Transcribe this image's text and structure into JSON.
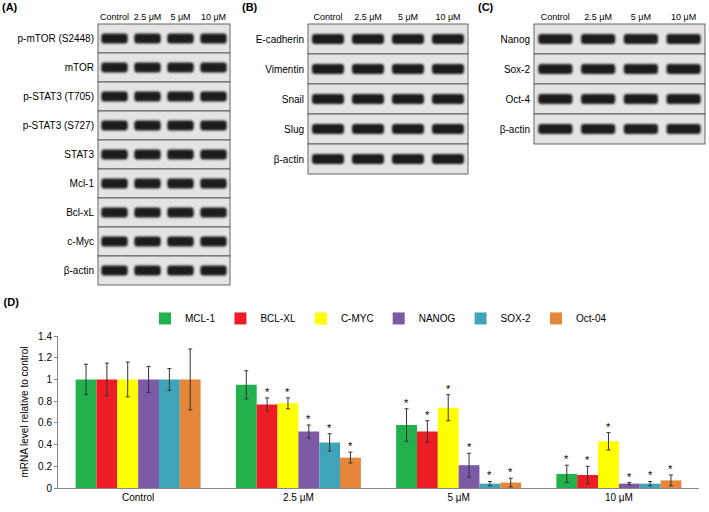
{
  "blots": [
    {
      "label": "(A)",
      "lanes": [
        "Control",
        "2.5 μM",
        "5 μM",
        "10 μM"
      ],
      "rows": [
        "p-mTOR (S2448)",
        "mTOR",
        "p-STAT3 (T705)",
        "p-STAT3 (S727)",
        "STAT3",
        "Mcl-1",
        "Bcl-xL",
        "c-Myc",
        "β-actin"
      ]
    },
    {
      "label": "(B)",
      "lanes": [
        "Control",
        "2.5 μM",
        "5 μM",
        "10 μM"
      ],
      "rows": [
        "E-cadherin",
        "Vimentin",
        "Snail",
        "Slug",
        "β-actin"
      ]
    },
    {
      "label": "(C)",
      "lanes": [
        "Control",
        "2.5 μM",
        "5 μM",
        "10 μM"
      ],
      "rows": [
        "Nanog",
        "Sox-2",
        "Oct-4",
        "β-actin"
      ]
    }
  ],
  "chart_data": {
    "type": "bar",
    "title": "(D)",
    "y_label": "mRNA level relative to control",
    "categories": [
      "Control",
      "2.5 μM",
      "5 μM",
      "10 μM"
    ],
    "ylim": [
      0,
      1.4
    ],
    "yticks": [
      0,
      0.2,
      0.4,
      0.6,
      0.8,
      1,
      1.2,
      1.4
    ],
    "grid": false,
    "legend": "top",
    "series": [
      {
        "name": "MCL-1",
        "color": "#22b14c",
        "values": [
          1,
          0.95,
          0.58,
          0.13
        ],
        "errors": [
          0.14,
          0.13,
          0.15,
          0.08
        ],
        "significance": [
          null,
          null,
          "*",
          "*"
        ]
      },
      {
        "name": "BCL-XL",
        "color": "#ee1c24",
        "values": [
          1,
          0.77,
          0.52,
          0.12
        ],
        "errors": [
          0.15,
          0.06,
          0.1,
          0.08
        ],
        "significance": [
          null,
          "*",
          "*",
          "*"
        ]
      },
      {
        "name": "C-MYC",
        "color": "#ffff00",
        "values": [
          1,
          0.78,
          0.74,
          0.43
        ],
        "errors": [
          0.16,
          0.05,
          0.12,
          0.08
        ],
        "significance": [
          null,
          "*",
          "*",
          "*"
        ]
      },
      {
        "name": "NANOG",
        "color": "#7d5aa6",
        "values": [
          1,
          0.52,
          0.21,
          0.04
        ],
        "errors": [
          0.12,
          0.06,
          0.11,
          0.01
        ],
        "significance": [
          null,
          "*",
          "*",
          "*"
        ]
      },
      {
        "name": "SOX-2",
        "color": "#40a4b8",
        "values": [
          1,
          0.42,
          0.04,
          0.04
        ],
        "errors": [
          0.1,
          0.08,
          0.02,
          0.02
        ],
        "significance": [
          null,
          "*",
          "*",
          "*"
        ]
      },
      {
        "name": "Oct-04",
        "color": "#e6863a",
        "values": [
          1,
          0.28,
          0.05,
          0.07
        ],
        "errors": [
          0.28,
          0.05,
          0.04,
          0.05
        ],
        "significance": [
          null,
          "*",
          "*",
          "*"
        ]
      }
    ]
  }
}
